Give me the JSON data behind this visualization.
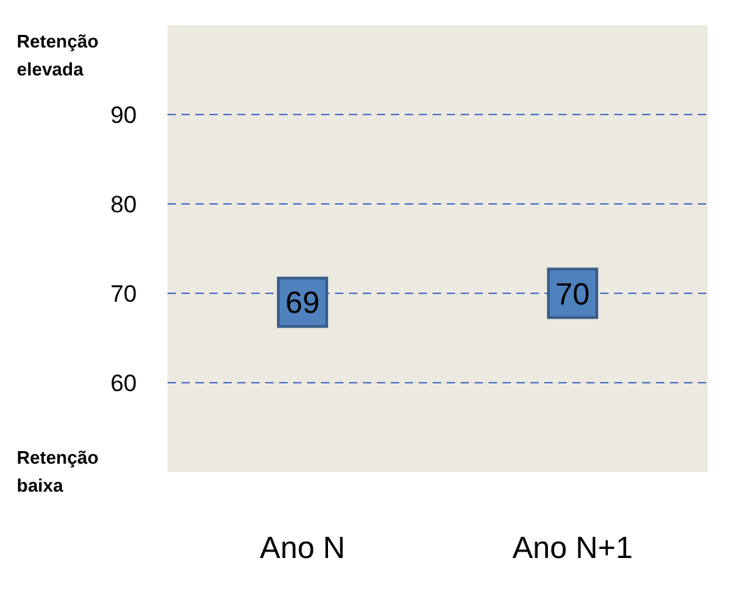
{
  "chart_data": {
    "type": "scatter",
    "categories": [
      "Ano N",
      "Ano N+1"
    ],
    "series": [
      {
        "color": "#4f81bd",
        "values": [
          69,
          70
        ]
      }
    ],
    "ylim": [
      50,
      100
    ],
    "yticks": [
      60,
      70,
      80,
      90
    ],
    "grid": "y",
    "marker": "square",
    "data_labels": true,
    "annotations": [
      "Retenção elevada",
      "Retenção baixa"
    ]
  }
}
